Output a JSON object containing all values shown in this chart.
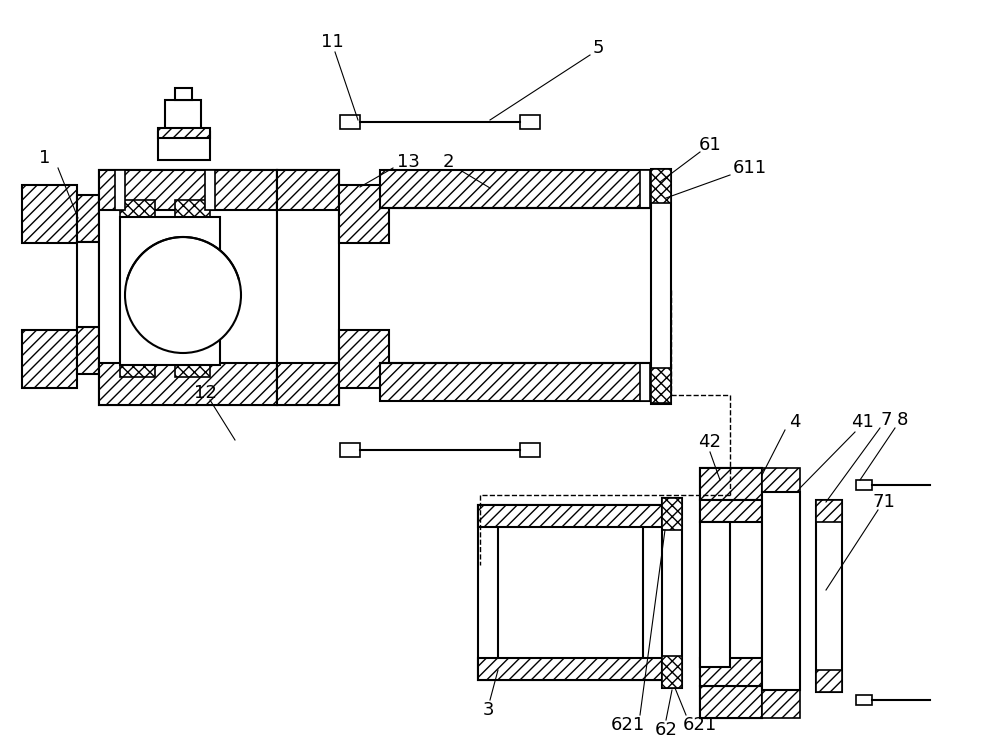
{
  "bg_color": "#ffffff",
  "lc": "#000000",
  "lw": 1.2,
  "lw2": 1.5,
  "fs": 13
}
